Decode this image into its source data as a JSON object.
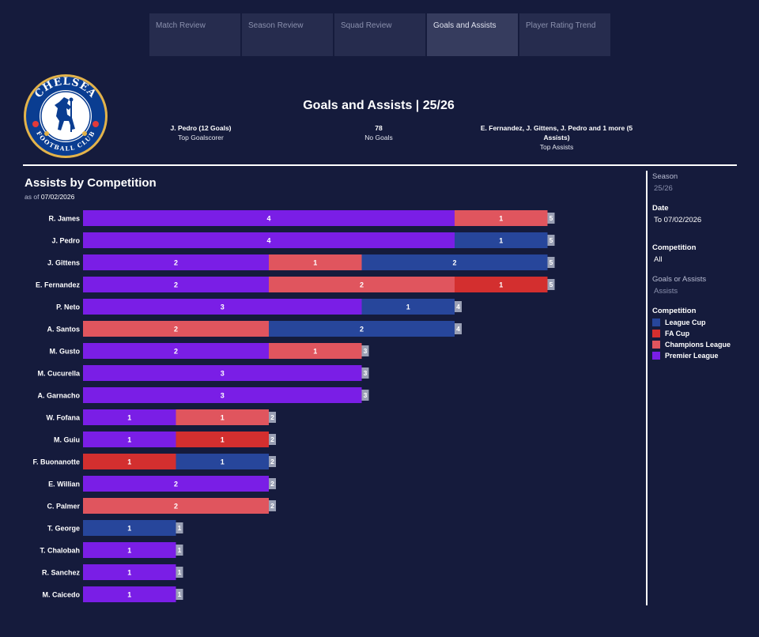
{
  "tabs": [
    {
      "label": "Match Review",
      "active": false
    },
    {
      "label": "Season Review",
      "active": false
    },
    {
      "label": "Squad Review",
      "active": false
    },
    {
      "label": "Goals and Assists",
      "active": true
    },
    {
      "label": "Player Rating Trend",
      "active": false
    }
  ],
  "crest": {
    "top_text": "CHELSEA",
    "bottom_text": "FOOTBALL CLUB"
  },
  "header": {
    "title": "Goals and Assists | 25/26",
    "kpis": [
      {
        "value": "J. Pedro (12 Goals)",
        "label": "Top Goalscorer"
      },
      {
        "value": "78",
        "label": "No Goals"
      },
      {
        "value": "E. Fernandez, J. Gittens, J. Pedro and 1 more (5 Assists)",
        "label": "Top Assists"
      }
    ]
  },
  "chart_title": "Assists by Competition",
  "asof": {
    "prefix": "as of",
    "date": "07/02/2026"
  },
  "sidebar": {
    "season": {
      "title": "Season",
      "value": "25/26"
    },
    "date": {
      "title": "Date",
      "value": "To 07/02/2026"
    },
    "competition": {
      "title": "Competition",
      "value": "All"
    },
    "goals_or_assists": {
      "title": "Goals or Assists",
      "value": "Assists"
    },
    "legend_title": "Competition"
  },
  "colors": {
    "premier_league": "#7a1ee6",
    "champions_league": "#e0555e",
    "fa_cup": "#d32f2f",
    "league_cup": "#27469b",
    "total_box": "#9aa0b5"
  },
  "chart_data": {
    "type": "bar",
    "orientation": "horizontal",
    "stacked": true,
    "title": "Assists by Competition",
    "legend": [
      {
        "name": "League Cup",
        "color": "#27469b"
      },
      {
        "name": "FA Cup",
        "color": "#d32f2f"
      },
      {
        "name": "Champions League",
        "color": "#e0555e"
      },
      {
        "name": "Premier League",
        "color": "#7a1ee6"
      }
    ],
    "rows": [
      {
        "player": "R. James",
        "total": 5,
        "segments": [
          {
            "comp": "Premier League",
            "value": 4
          },
          {
            "comp": "Champions League",
            "value": 1
          }
        ]
      },
      {
        "player": "J. Pedro",
        "total": 5,
        "segments": [
          {
            "comp": "Premier League",
            "value": 4
          },
          {
            "comp": "League Cup",
            "value": 1
          }
        ]
      },
      {
        "player": "J. Gittens",
        "total": 5,
        "segments": [
          {
            "comp": "Premier League",
            "value": 2
          },
          {
            "comp": "Champions League",
            "value": 1
          },
          {
            "comp": "League Cup",
            "value": 2
          }
        ]
      },
      {
        "player": "E. Fernandez",
        "total": 5,
        "segments": [
          {
            "comp": "Premier League",
            "value": 2
          },
          {
            "comp": "Champions League",
            "value": 2
          },
          {
            "comp": "FA Cup",
            "value": 1
          }
        ]
      },
      {
        "player": "P. Neto",
        "total": 4,
        "segments": [
          {
            "comp": "Premier League",
            "value": 3
          },
          {
            "comp": "League Cup",
            "value": 1
          }
        ]
      },
      {
        "player": "A. Santos",
        "total": 4,
        "segments": [
          {
            "comp": "Champions League",
            "value": 2
          },
          {
            "comp": "League Cup",
            "value": 2
          }
        ]
      },
      {
        "player": "M. Gusto",
        "total": 3,
        "segments": [
          {
            "comp": "Premier League",
            "value": 2
          },
          {
            "comp": "Champions League",
            "value": 1
          }
        ]
      },
      {
        "player": "M. Cucurella",
        "total": 3,
        "segments": [
          {
            "comp": "Premier League",
            "value": 3
          }
        ]
      },
      {
        "player": "A. Garnacho",
        "total": 3,
        "segments": [
          {
            "comp": "Premier League",
            "value": 3
          }
        ]
      },
      {
        "player": "W. Fofana",
        "total": 2,
        "segments": [
          {
            "comp": "Premier League",
            "value": 1
          },
          {
            "comp": "Champions League",
            "value": 1
          }
        ]
      },
      {
        "player": "M. Guiu",
        "total": 2,
        "segments": [
          {
            "comp": "Premier League",
            "value": 1
          },
          {
            "comp": "FA Cup",
            "value": 1
          }
        ]
      },
      {
        "player": "F. Buonanotte",
        "total": 2,
        "segments": [
          {
            "comp": "FA Cup",
            "value": 1
          },
          {
            "comp": "League Cup",
            "value": 1
          }
        ]
      },
      {
        "player": "E. Willian",
        "total": 2,
        "segments": [
          {
            "comp": "Premier League",
            "value": 2
          }
        ]
      },
      {
        "player": "C. Palmer",
        "total": 2,
        "segments": [
          {
            "comp": "Champions League",
            "value": 2
          }
        ]
      },
      {
        "player": "T. George",
        "total": 1,
        "segments": [
          {
            "comp": "League Cup",
            "value": 1
          }
        ]
      },
      {
        "player": "T. Chalobah",
        "total": 1,
        "segments": [
          {
            "comp": "Premier League",
            "value": 1
          }
        ]
      },
      {
        "player": "R. Sanchez",
        "total": 1,
        "segments": [
          {
            "comp": "Premier League",
            "value": 1
          }
        ]
      },
      {
        "player": "M. Caicedo",
        "total": 1,
        "segments": [
          {
            "comp": "Premier League",
            "value": 1
          }
        ]
      }
    ]
  }
}
